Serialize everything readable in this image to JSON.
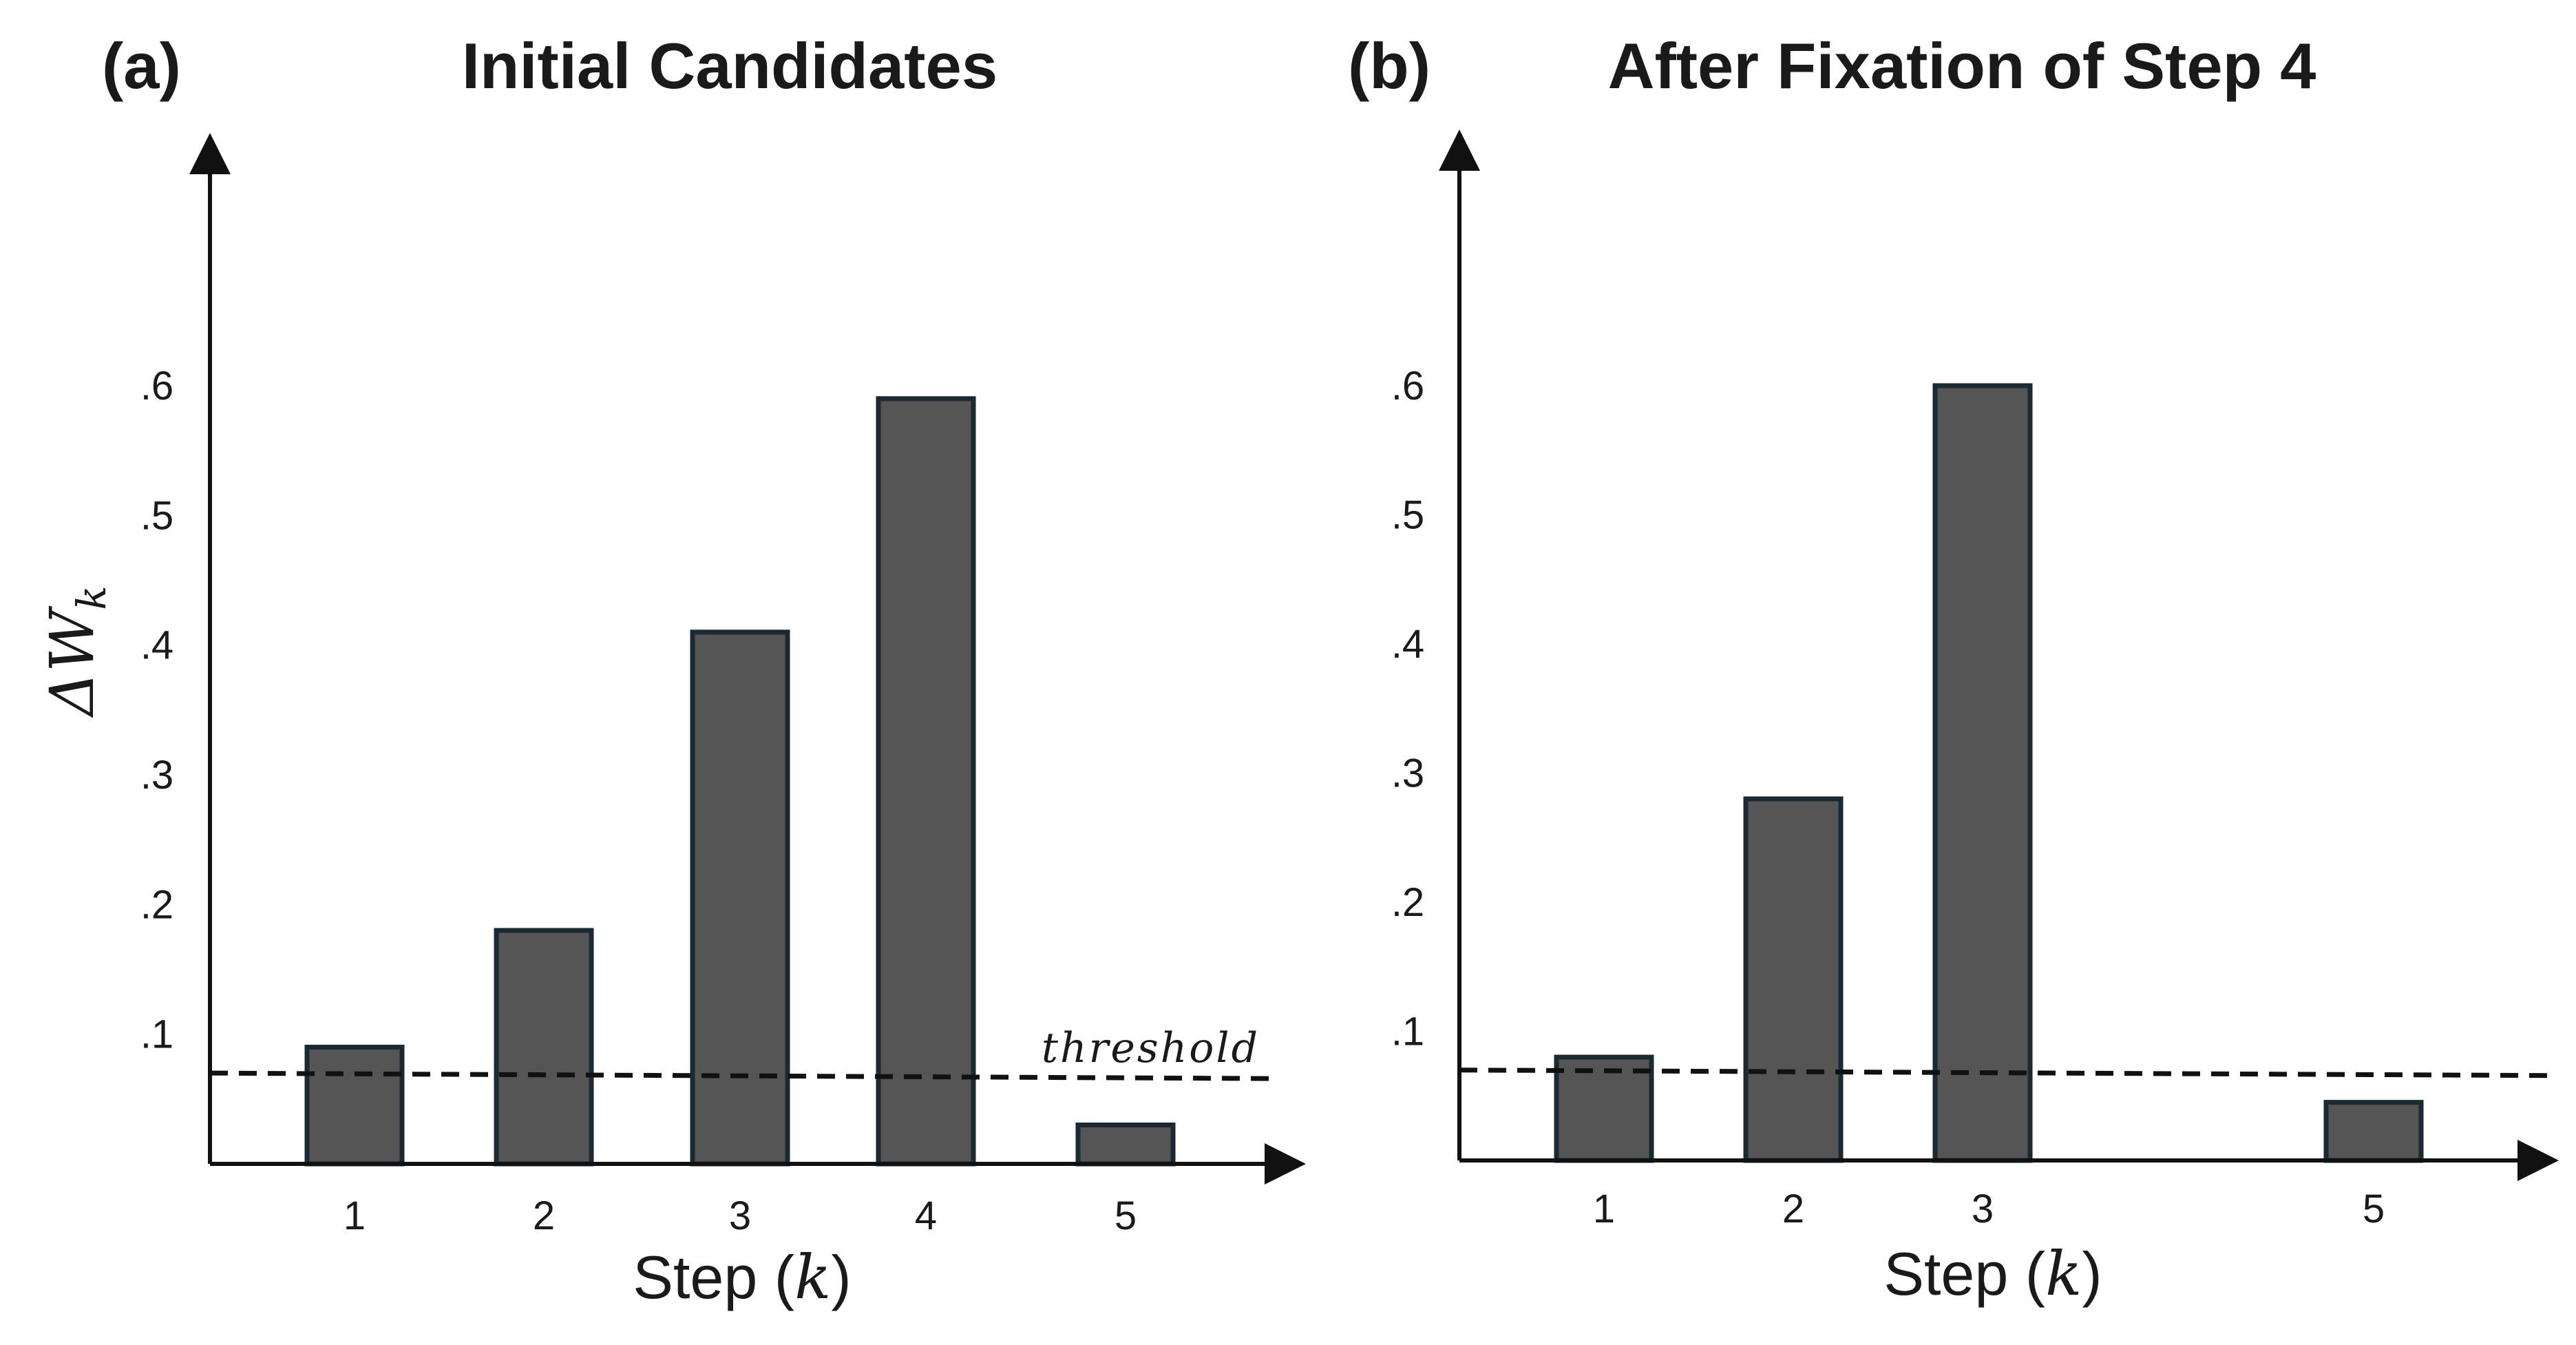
{
  "chart_data": [
    {
      "panel_letter": "(a)",
      "title": "Initial Candidates",
      "type": "bar",
      "categories": [
        "1",
        "2",
        "3",
        "4",
        "5"
      ],
      "values": [
        0.09,
        0.18,
        0.41,
        0.59,
        0.03
      ],
      "ylabel": "ΔW",
      "ylabel_sub": "k",
      "xlabel": "Step (",
      "xlabel_var": "k",
      "xlabel_close": ")",
      "yticks": [
        ".1",
        ".2",
        ".3",
        ".4",
        ".5",
        ".6"
      ],
      "ytick_values": [
        0.1,
        0.2,
        0.3,
        0.4,
        0.5,
        0.6
      ],
      "ylim": [
        0,
        0.85
      ],
      "threshold": 0.07,
      "threshold_label": "threshold",
      "bar_color": "#555555",
      "bar_edge_color": "#1a2a33"
    },
    {
      "panel_letter": "(b)",
      "title": "After Fixation of Step 4",
      "type": "bar",
      "categories": [
        "1",
        "2",
        "3",
        "",
        "5"
      ],
      "values": [
        0.08,
        0.28,
        0.6,
        null,
        0.045
      ],
      "xlabel": "Step (",
      "xlabel_var": "k",
      "xlabel_close": ")",
      "yticks": [
        ".1",
        ".2",
        ".3",
        ".4",
        ".5",
        ".6"
      ],
      "ytick_values": [
        0.1,
        0.2,
        0.3,
        0.4,
        0.5,
        0.6
      ],
      "ylim": [
        0,
        0.85
      ],
      "threshold": 0.07,
      "bar_color": "#555555",
      "bar_edge_color": "#1a2a33"
    }
  ]
}
